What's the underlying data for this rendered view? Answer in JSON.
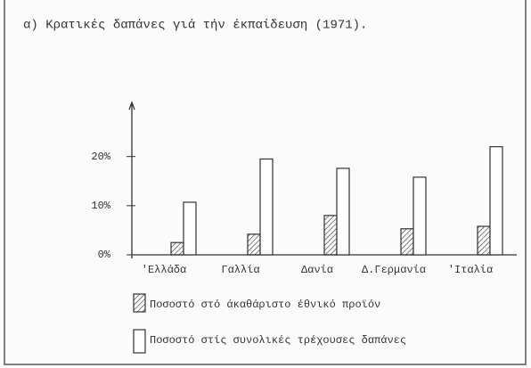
{
  "chart_data": {
    "type": "bar",
    "title": "α) Κρατικές δαπάνες γιά τήν έκπαίδευση (1971).",
    "categories": [
      "'Ελλάδα",
      "Γαλλία",
      "Δανία",
      "Δ.Γερμανία",
      "'Ιταλία"
    ],
    "series": [
      {
        "name": "Ποσοστό στό άκαθάριστο έθνικό προϊόν",
        "color": "#333333",
        "hatched": true,
        "values": [
          2.5,
          4.2,
          8.0,
          5.3,
          5.8
        ]
      },
      {
        "name": "Ποσοστό στίς συνολικές τρέχουσες δαπάνες",
        "color": "#333333",
        "hatched": false,
        "values": [
          10.7,
          19.5,
          17.6,
          15.8,
          22.0
        ]
      }
    ],
    "ylim": [
      0,
      31
    ],
    "yticks": [
      {
        "value": 0,
        "label": "0%"
      },
      {
        "value": 10,
        "label": "10%"
      },
      {
        "value": 20,
        "label": "20%"
      }
    ],
    "grid": false
  }
}
